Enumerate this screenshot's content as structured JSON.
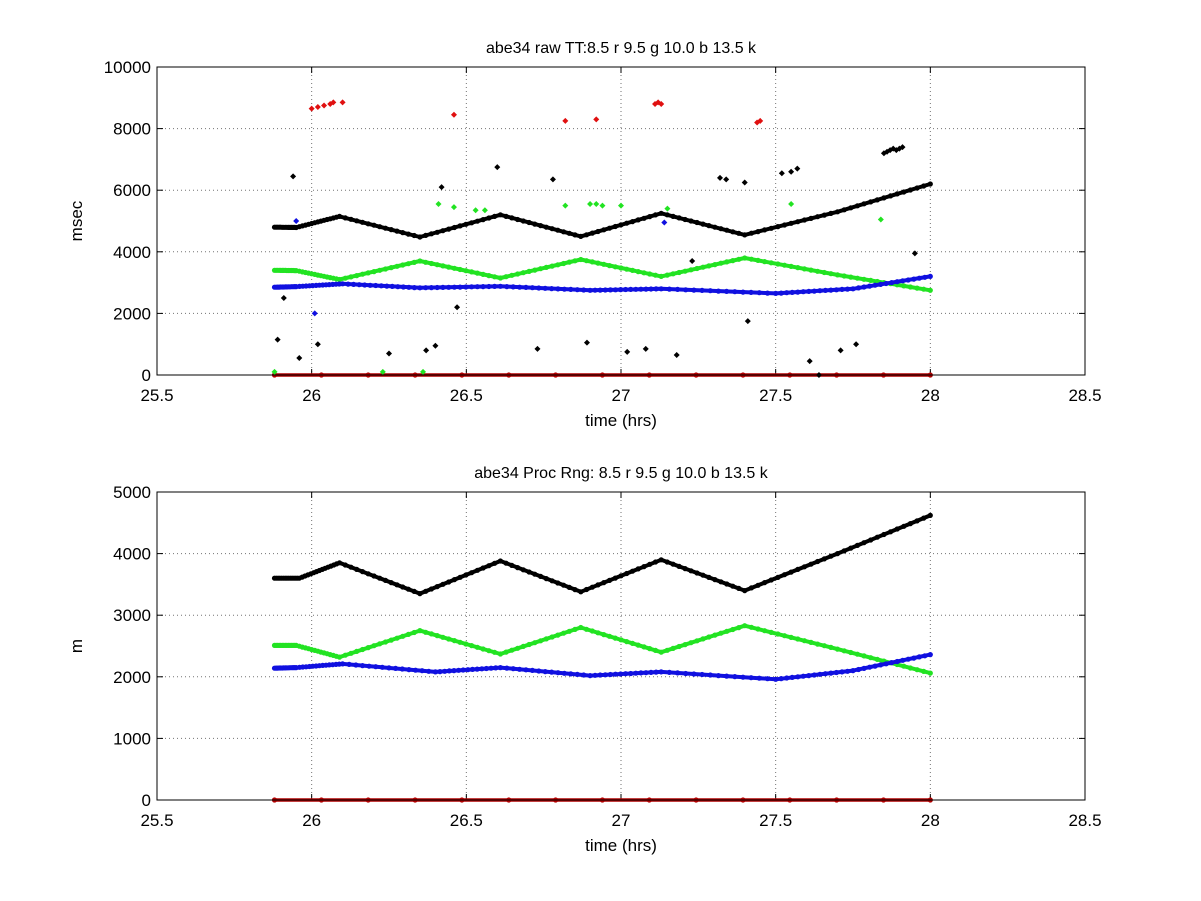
{
  "chart_data": [
    {
      "type": "scatter",
      "title": "abe34 raw TT:8.5 r  9.5 g  10.0 b  13.5  k",
      "xlabel": "time (hrs)",
      "ylabel": "msec",
      "xlim": [
        25.5,
        28.5
      ],
      "ylim": [
        0,
        10000
      ],
      "xticks": [
        "25.5",
        "26",
        "26.5",
        "27",
        "27.5",
        "28",
        "28.5"
      ],
      "yticks": [
        "0",
        "2000",
        "4000",
        "6000",
        "8000",
        "10000"
      ],
      "grid": true,
      "colors": {
        "black": "#000000",
        "green": "#22e322",
        "blue": "#1010e0",
        "red": "#e01010",
        "darkred": "#b00000"
      },
      "series": [
        {
          "color": "black",
          "kind": "line",
          "x": [
            25.88,
            25.95,
            26.09,
            26.35,
            26.61,
            26.87,
            27.13,
            27.4,
            27.7,
            28.0
          ],
          "y": [
            4800,
            4790,
            5150,
            4480,
            5200,
            4500,
            5250,
            4550,
            5300,
            6200
          ]
        },
        {
          "color": "green",
          "kind": "line",
          "x": [
            25.88,
            25.95,
            26.09,
            26.35,
            26.61,
            26.87,
            27.13,
            27.4,
            27.7,
            28.0
          ],
          "y": [
            3400,
            3390,
            3100,
            3700,
            3150,
            3750,
            3200,
            3800,
            3250,
            2750
          ]
        },
        {
          "color": "blue",
          "kind": "line",
          "x": [
            25.88,
            25.95,
            26.1,
            26.35,
            26.61,
            26.9,
            27.13,
            27.5,
            27.75,
            28.0
          ],
          "y": [
            2850,
            2870,
            2960,
            2830,
            2880,
            2750,
            2800,
            2650,
            2800,
            3200
          ]
        },
        {
          "color": "darkred",
          "kind": "line",
          "x": [
            25.88,
            28.0
          ],
          "y": [
            0,
            0
          ]
        },
        {
          "color": "red",
          "kind": "points",
          "x": [
            26.0,
            26.02,
            26.04,
            26.06,
            26.07,
            26.1,
            26.46,
            26.82,
            26.92,
            27.11,
            27.12,
            27.13,
            27.44,
            27.45
          ],
          "y": [
            8650,
            8700,
            8750,
            8800,
            8850,
            8850,
            8450,
            8250,
            8300,
            8800,
            8850,
            8800,
            8200,
            8250
          ]
        },
        {
          "color": "black",
          "kind": "points",
          "x": [
            25.89,
            25.91,
            25.94,
            25.96,
            26.02,
            26.25,
            26.37,
            26.4,
            26.42,
            26.47,
            26.6,
            26.73,
            26.78,
            26.89,
            27.02,
            27.08,
            27.18,
            27.23,
            27.32,
            27.34,
            27.4,
            27.41,
            27.52,
            27.55,
            27.57,
            27.61,
            27.64,
            27.71,
            27.76,
            27.85,
            27.86,
            27.87,
            27.88,
            27.89,
            27.9,
            27.91,
            27.95
          ],
          "y": [
            1150,
            2500,
            6450,
            550,
            1000,
            700,
            800,
            950,
            6100,
            2200,
            6750,
            850,
            6350,
            1050,
            750,
            850,
            650,
            3700,
            6400,
            6350,
            6250,
            1750,
            6550,
            6600,
            6700,
            450,
            0,
            800,
            1000,
            7200,
            7250,
            7300,
            7350,
            7300,
            7350,
            7400,
            3950
          ]
        },
        {
          "color": "green",
          "kind": "points",
          "x": [
            25.88,
            26.23,
            26.36,
            26.41,
            26.46,
            26.53,
            26.56,
            26.82,
            26.9,
            26.92,
            26.94,
            27.0,
            27.15,
            27.55,
            27.84
          ],
          "y": [
            100,
            100,
            100,
            5550,
            5450,
            5350,
            5350,
            5500,
            5550,
            5550,
            5500,
            5500,
            5400,
            5550,
            5050
          ]
        },
        {
          "color": "blue",
          "kind": "points",
          "x": [
            25.95,
            26.01,
            27.14
          ],
          "y": [
            5000,
            2000,
            4950
          ]
        }
      ]
    },
    {
      "type": "scatter",
      "title": "abe34 Proc Rng: 8.5 r  9.5 g  10.0 b  13.5  k",
      "xlabel": "time (hrs)",
      "ylabel": "m",
      "xlim": [
        25.5,
        28.5
      ],
      "ylim": [
        0,
        5000
      ],
      "xticks": [
        "25.5",
        "26",
        "26.5",
        "27",
        "27.5",
        "28",
        "28.5"
      ],
      "yticks": [
        "0",
        "1000",
        "2000",
        "3000",
        "4000",
        "5000"
      ],
      "grid": true,
      "colors": {
        "black": "#000000",
        "green": "#22e322",
        "blue": "#1010e0",
        "red": "#e01010",
        "darkred": "#b00000"
      },
      "series": [
        {
          "color": "black",
          "kind": "line",
          "x": [
            25.88,
            25.96,
            26.09,
            26.35,
            26.61,
            26.87,
            27.13,
            27.4,
            27.7,
            28.0
          ],
          "y": [
            3600,
            3600,
            3850,
            3350,
            3880,
            3380,
            3900,
            3400,
            4000,
            4620
          ]
        },
        {
          "color": "green",
          "kind": "line",
          "x": [
            25.88,
            25.95,
            26.09,
            26.35,
            26.61,
            26.87,
            27.13,
            27.4,
            27.7,
            28.0
          ],
          "y": [
            2510,
            2510,
            2320,
            2750,
            2370,
            2800,
            2400,
            2830,
            2450,
            2060
          ]
        },
        {
          "color": "blue",
          "kind": "line",
          "x": [
            25.88,
            25.95,
            26.1,
            26.4,
            26.61,
            26.9,
            27.13,
            27.5,
            27.75,
            28.0
          ],
          "y": [
            2140,
            2150,
            2210,
            2080,
            2150,
            2020,
            2080,
            1960,
            2100,
            2360
          ]
        },
        {
          "color": "darkred",
          "kind": "line",
          "x": [
            25.88,
            28.0
          ],
          "y": [
            0,
            0
          ]
        }
      ]
    }
  ]
}
